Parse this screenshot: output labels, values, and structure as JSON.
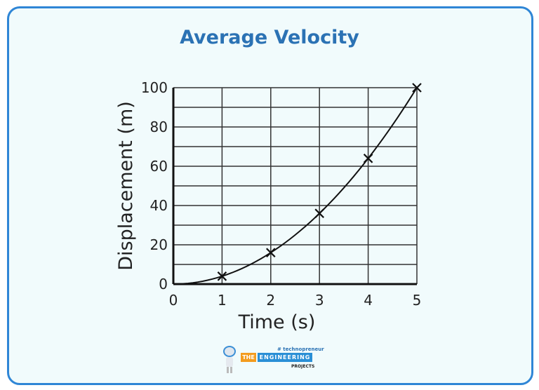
{
  "chart_data": {
    "type": "line",
    "title": "Average Velocity",
    "xlabel": "Time (s)",
    "ylabel": "Displacement (m)",
    "xlim": [
      0,
      5
    ],
    "ylim": [
      0,
      100
    ],
    "x_ticks": [
      "0",
      "1",
      "2",
      "3",
      "4",
      "5"
    ],
    "y_ticks": [
      "0",
      "20",
      "40",
      "60",
      "80",
      "100"
    ],
    "grid": true,
    "grid_y_step": 10,
    "markers": "x",
    "x": [
      1,
      2,
      3,
      4,
      5
    ],
    "y": [
      4,
      16,
      36,
      64,
      100
    ],
    "curve": "smooth through origin"
  },
  "colors": {
    "title": "#2b72b4",
    "frame": "#2f86d6",
    "background": "#f1fbfc"
  },
  "logo": {
    "tagline": "# technopreneur",
    "the": "THE",
    "engineering": "ENGINEERING",
    "projects": "PROJECTS"
  }
}
